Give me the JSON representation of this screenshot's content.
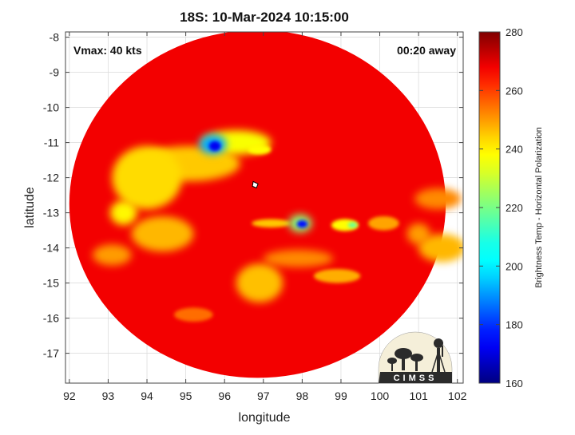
{
  "chart_data": {
    "type": "heatmap",
    "title": "18S: 10-Mar-2024 10:15:00",
    "xlabel": "longitude",
    "ylabel": "latitude",
    "xlim": [
      91.9,
      102.15
    ],
    "ylim": [
      -17.85,
      -7.85
    ],
    "x_ticks": [
      92,
      93,
      94,
      95,
      96,
      97,
      98,
      99,
      100,
      101,
      102
    ],
    "y_ticks": [
      -8,
      -9,
      -10,
      -11,
      -12,
      -13,
      -14,
      -15,
      -16,
      -17
    ],
    "colorbar": {
      "label": "Brightness Temp - Horizontal Polarization",
      "range": [
        160,
        280
      ],
      "ticks": [
        280,
        260,
        240,
        220,
        200,
        180,
        160
      ],
      "colormap": "jet"
    },
    "annotations": {
      "vmax": "Vmax: 40 kts",
      "time_away": "00:20 away"
    },
    "swath": {
      "center": [
        96.85,
        -12.75
      ],
      "lon_radius": 4.85,
      "lat_radius": 4.95,
      "background_temp": 268
    },
    "storm_center": [
      96.8,
      -12.2
    ],
    "features": [
      {
        "lon": 95.1,
        "lat": -11.6,
        "rlon": 1.3,
        "rlat": 0.5,
        "temp": 245
      },
      {
        "lon": 94.0,
        "lat": -12.0,
        "rlon": 0.9,
        "rlat": 0.9,
        "temp": 243
      },
      {
        "lon": 96.3,
        "lat": -11.0,
        "rlon": 0.9,
        "rlat": 0.35,
        "temp": 236
      },
      {
        "lon": 95.7,
        "lat": -11.05,
        "rlon": 0.35,
        "rlat": 0.28,
        "temp": 192
      },
      {
        "lon": 95.75,
        "lat": -11.1,
        "rlon": 0.15,
        "rlat": 0.14,
        "temp": 172
      },
      {
        "lon": 96.9,
        "lat": -11.2,
        "rlon": 0.3,
        "rlat": 0.14,
        "temp": 238
      },
      {
        "lon": 93.4,
        "lat": -13.0,
        "rlon": 0.35,
        "rlat": 0.35,
        "temp": 240
      },
      {
        "lon": 94.4,
        "lat": -13.6,
        "rlon": 0.8,
        "rlat": 0.5,
        "temp": 247
      },
      {
        "lon": 93.1,
        "lat": -14.2,
        "rlon": 0.5,
        "rlat": 0.3,
        "temp": 250
      },
      {
        "lon": 97.2,
        "lat": -13.3,
        "rlon": 0.5,
        "rlat": 0.12,
        "temp": 245
      },
      {
        "lon": 97.95,
        "lat": -13.3,
        "rlon": 0.3,
        "rlat": 0.25,
        "temp": 222
      },
      {
        "lon": 98.0,
        "lat": -13.32,
        "rlon": 0.14,
        "rlat": 0.11,
        "temp": 176
      },
      {
        "lon": 99.1,
        "lat": -13.35,
        "rlon": 0.35,
        "rlat": 0.17,
        "temp": 238
      },
      {
        "lon": 99.3,
        "lat": -13.35,
        "rlon": 0.12,
        "rlat": 0.08,
        "temp": 218
      },
      {
        "lon": 100.1,
        "lat": -13.3,
        "rlon": 0.4,
        "rlat": 0.2,
        "temp": 249
      },
      {
        "lon": 101.0,
        "lat": -13.6,
        "rlon": 0.3,
        "rlat": 0.3,
        "temp": 250
      },
      {
        "lon": 101.6,
        "lat": -14.0,
        "rlon": 0.6,
        "rlat": 0.4,
        "temp": 247
      },
      {
        "lon": 101.5,
        "lat": -12.6,
        "rlon": 0.6,
        "rlat": 0.3,
        "temp": 252
      },
      {
        "lon": 97.9,
        "lat": -14.3,
        "rlon": 0.9,
        "rlat": 0.25,
        "temp": 252
      },
      {
        "lon": 96.9,
        "lat": -15.0,
        "rlon": 0.6,
        "rlat": 0.55,
        "temp": 246
      },
      {
        "lon": 98.9,
        "lat": -14.8,
        "rlon": 0.6,
        "rlat": 0.2,
        "temp": 248
      },
      {
        "lon": 95.2,
        "lat": -15.9,
        "rlon": 0.5,
        "rlat": 0.2,
        "temp": 255
      }
    ]
  },
  "logo": {
    "text": "CIMSS"
  }
}
